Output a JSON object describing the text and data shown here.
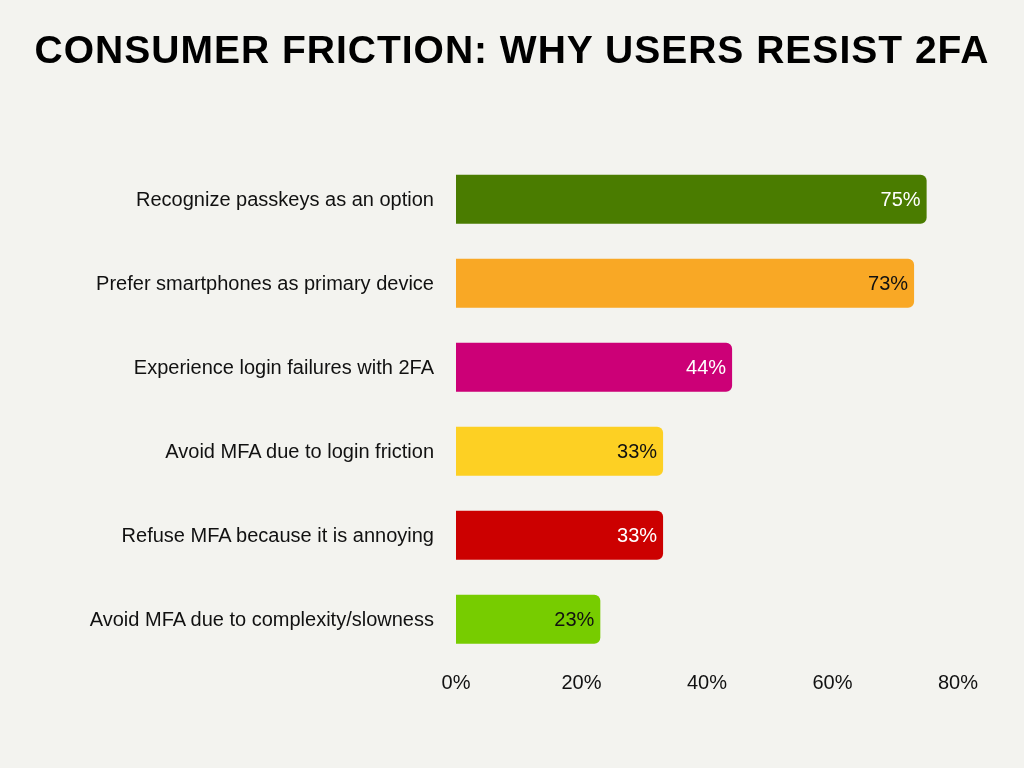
{
  "chart_data": {
    "type": "bar",
    "orientation": "horizontal",
    "title": "CONSUMER FRICTION: WHY USERS RESIST 2FA",
    "categories": [
      "Recognize passkeys as an option",
      "Prefer smartphones as primary device",
      "Experience login failures with 2FA",
      "Avoid MFA due to login friction",
      "Refuse MFA because it is annoying",
      "Avoid MFA due to complexity/slowness"
    ],
    "values": [
      75,
      73,
      44,
      33,
      33,
      23
    ],
    "colors": [
      "#4a7c00",
      "#f9a825",
      "#cc0077",
      "#fdd023",
      "#cc0000",
      "#77cc00"
    ],
    "value_labels": [
      "75%",
      "73%",
      "44%",
      "33%",
      "33%",
      "23%"
    ],
    "xlim": [
      0,
      80
    ],
    "xticks": [
      {
        "value": 0,
        "label": "0%"
      },
      {
        "value": 20,
        "label": "20%"
      },
      {
        "value": 40,
        "label": "40%"
      },
      {
        "value": 60,
        "label": "60%"
      },
      {
        "value": 80,
        "label": "80%"
      }
    ],
    "grid": false
  }
}
